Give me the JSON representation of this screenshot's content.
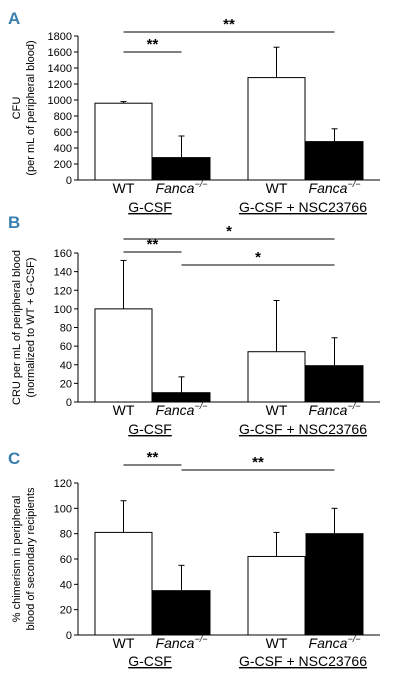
{
  "chart_data": [
    {
      "type": "bar",
      "panel": "A",
      "ylabel_line1": "CFU",
      "ylabel_line2": "(per mL of peripheral blood)",
      "ylim": [
        0,
        1800
      ],
      "yticks": [
        0,
        200,
        400,
        600,
        800,
        1000,
        1200,
        1400,
        1600,
        1800
      ],
      "categories": [
        "WT",
        "Fanca",
        "WT",
        "Fanca"
      ],
      "superscript": [
        "",
        "−/−",
        "",
        "−/−"
      ],
      "values": [
        960,
        280,
        1280,
        480
      ],
      "errors": [
        20,
        270,
        380,
        160
      ],
      "fill": [
        "#ffffff",
        "#000000",
        "#ffffff",
        "#000000"
      ],
      "groups": [
        "G-CSF",
        "G-CSF + NSC23766"
      ],
      "brackets": [
        {
          "from": 0,
          "to": 1,
          "label": "**"
        },
        {
          "from": 0,
          "to": 3,
          "label": "**"
        }
      ]
    },
    {
      "type": "bar",
      "panel": "B",
      "ylabel_line1": "CRU per mL of peripheral blood",
      "ylabel_line2": "(normalized to WT + G-CSF)",
      "ylim": [
        0,
        160
      ],
      "yticks": [
        0,
        20,
        40,
        60,
        80,
        100,
        120,
        140,
        160
      ],
      "categories": [
        "WT",
        "Fanca",
        "WT",
        "Fanca"
      ],
      "superscript": [
        "",
        "−/−",
        "",
        "−/−"
      ],
      "values": [
        100,
        10,
        54,
        39
      ],
      "errors": [
        52,
        17,
        55,
        30
      ],
      "fill": [
        "#ffffff",
        "#000000",
        "#ffffff",
        "#000000"
      ],
      "groups": [
        "G-CSF",
        "G-CSF + NSC23766"
      ],
      "brackets": [
        {
          "from": 0,
          "to": 1,
          "label": "**"
        },
        {
          "from": 0,
          "to": 3,
          "label": "*"
        },
        {
          "from": 1,
          "to": 3,
          "label": "*"
        }
      ]
    },
    {
      "type": "bar",
      "panel": "C",
      "ylabel_line1": "% chimerism in peripheral",
      "ylabel_line2": "blood of secondary recipients",
      "ylim": [
        0,
        120
      ],
      "yticks": [
        0,
        20,
        40,
        60,
        80,
        100,
        120
      ],
      "categories": [
        "WT",
        "Fanca",
        "WT",
        "Fanca"
      ],
      "superscript": [
        "",
        "−/−",
        "",
        "−/−"
      ],
      "values": [
        81,
        35,
        62,
        80
      ],
      "errors": [
        25,
        20,
        19,
        20
      ],
      "fill": [
        "#ffffff",
        "#000000",
        "#ffffff",
        "#000000"
      ],
      "groups": [
        "G-CSF",
        "G-CSF + NSC23766"
      ],
      "brackets": [
        {
          "from": 0,
          "to": 1,
          "label": "**"
        },
        {
          "from": 1,
          "to": 3,
          "label": "**"
        }
      ]
    }
  ]
}
